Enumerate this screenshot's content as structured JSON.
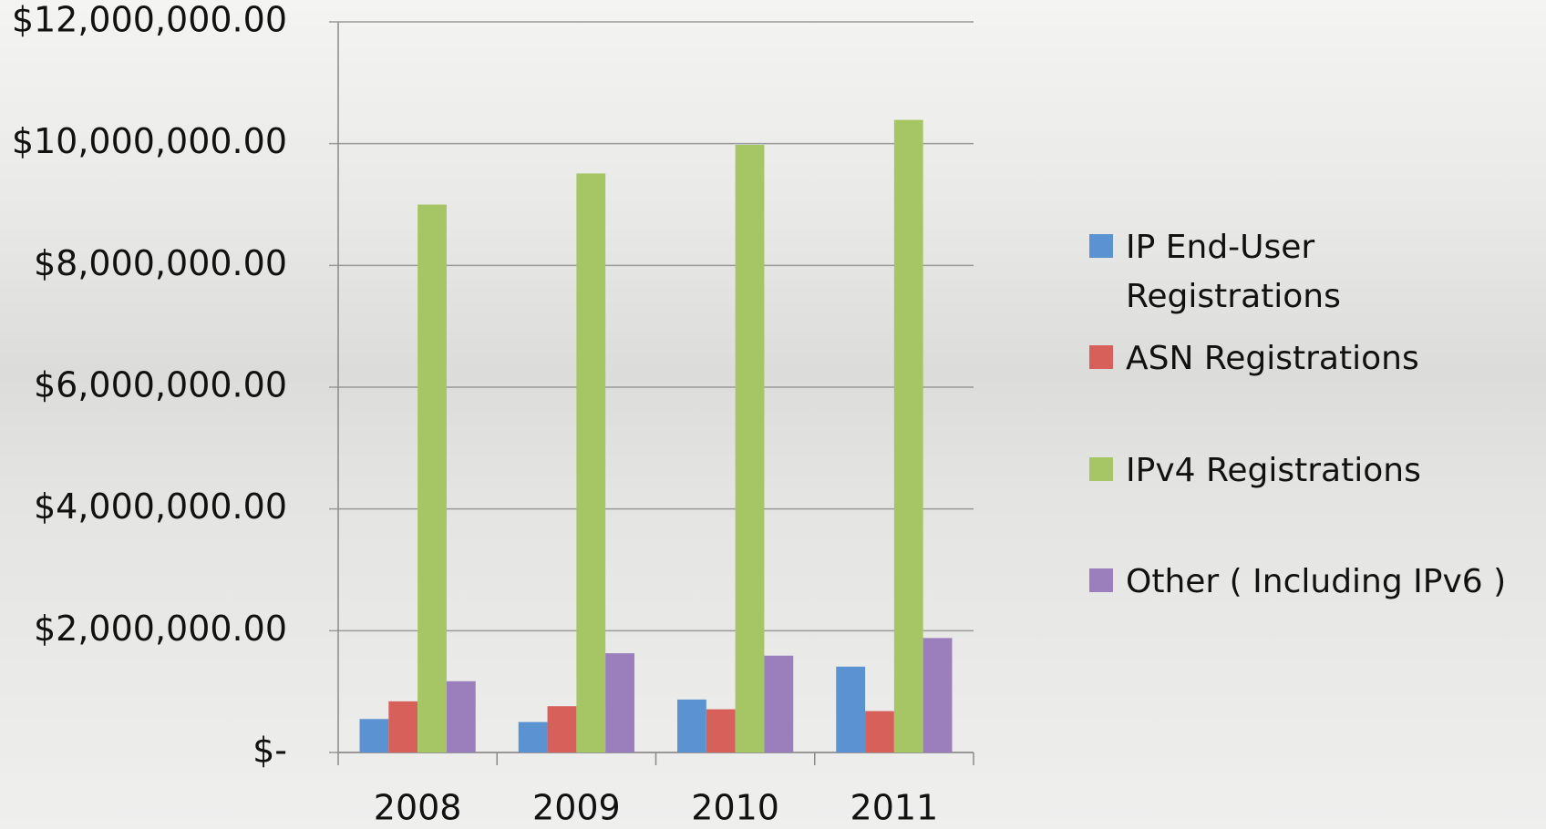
{
  "chart_data": {
    "type": "bar",
    "categories": [
      "2008",
      "2009",
      "2010",
      "2011"
    ],
    "series": [
      {
        "name": "IP End-User Registrations",
        "color": "#5b93d2",
        "values": [
          550000,
          500000,
          870000,
          1410000
        ]
      },
      {
        "name": "ASN Registrations",
        "color": "#d7615a",
        "values": [
          840000,
          760000,
          710000,
          680000
        ]
      },
      {
        "name": "IPv4 Registrations",
        "color": "#a6c665",
        "values": [
          9000000,
          9510000,
          9980000,
          10390000
        ]
      },
      {
        "name": "Other ( Including IPv6 )",
        "color": "#9a7fbc",
        "values": [
          1170000,
          1630000,
          1590000,
          1880000
        ]
      }
    ],
    "ylim": [
      0,
      12000000
    ],
    "yticks": [
      {
        "value": 0,
        "label": "$-"
      },
      {
        "value": 2000000,
        "label": "$2,000,000.00"
      },
      {
        "value": 4000000,
        "label": "$4,000,000.00"
      },
      {
        "value": 6000000,
        "label": "$6,000,000.00"
      },
      {
        "value": 8000000,
        "label": "$8,000,000.00"
      },
      {
        "value": 10000000,
        "label": "$10,000,000.00"
      },
      {
        "value": 12000000,
        "label": "$12,000,000.00"
      }
    ],
    "grid": true,
    "legend": "right"
  }
}
